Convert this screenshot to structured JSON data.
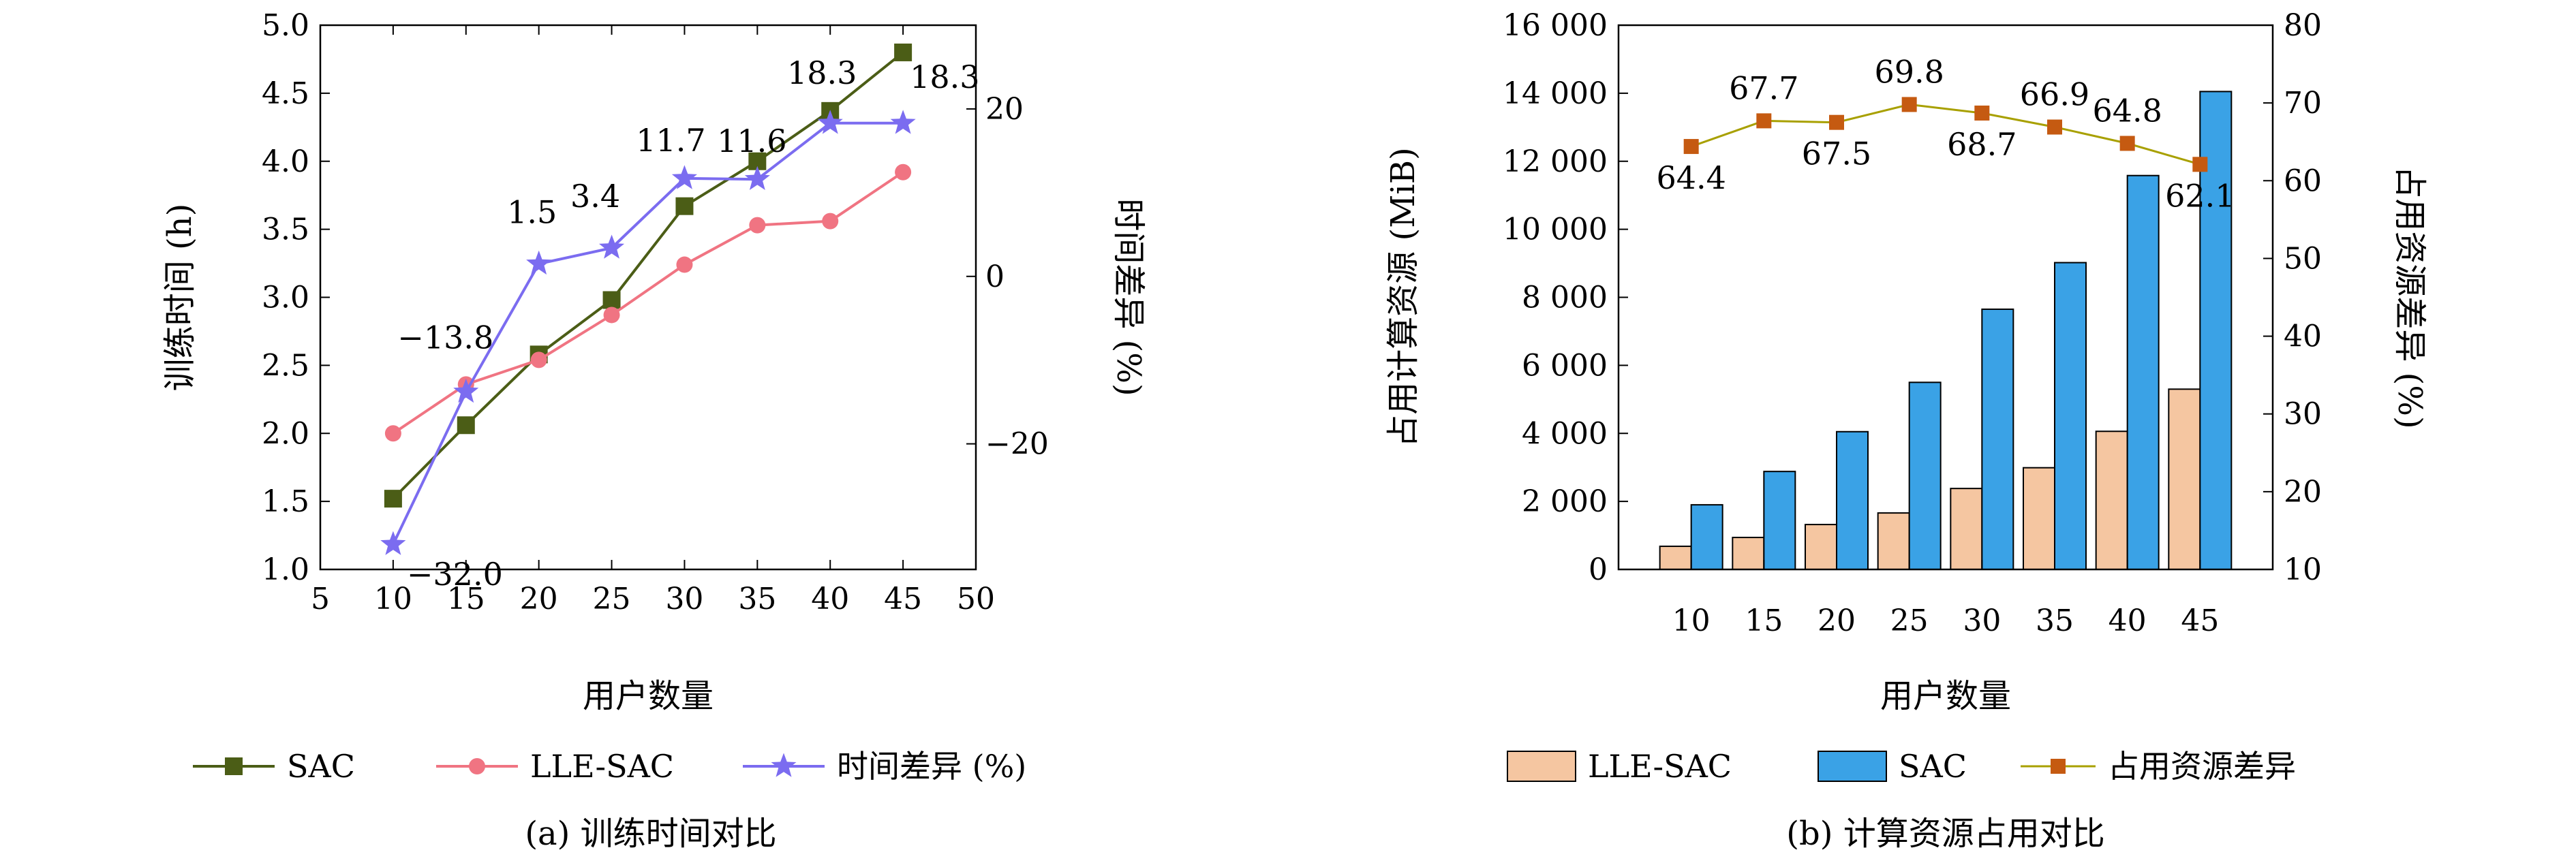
{
  "chart_data": [
    {
      "type": "line",
      "caption": "(a) 训练时间对比",
      "xlabel": "用户数量",
      "ylabel_left": "训练时间 (h)",
      "ylabel_right": "时间差异 (%)",
      "xlim": [
        5,
        50
      ],
      "xticks": [
        "5",
        "10",
        "15",
        "20",
        "25",
        "30",
        "35",
        "40",
        "45",
        "50"
      ],
      "ylim_left": [
        1.0,
        5.0
      ],
      "yticks_left": [
        "1.0",
        "1.5",
        "2.0",
        "2.5",
        "3.0",
        "3.5",
        "4.0",
        "4.5",
        "5.0"
      ],
      "ylim_right": [
        -35,
        30
      ],
      "yticks_right": [
        "−20",
        "0",
        "20"
      ],
      "x": [
        10,
        15,
        20,
        25,
        30,
        35,
        40,
        45
      ],
      "series": [
        {
          "name": "SAC",
          "axis": "left",
          "color": "#4b5d16",
          "marker": "square",
          "values": [
            1.52,
            2.06,
            2.58,
            2.98,
            3.67,
            4.0,
            4.37,
            4.8
          ]
        },
        {
          "name": "LLE-SAC",
          "axis": "left",
          "color": "#f07482",
          "marker": "circle",
          "values": [
            2.0,
            2.36,
            2.54,
            2.87,
            3.24,
            3.53,
            3.56,
            3.92
          ]
        },
        {
          "name": "时间差异 (%)",
          "axis": "right",
          "color": "#7b6cf0",
          "marker": "star",
          "values": [
            -32.0,
            -13.8,
            1.5,
            3.4,
            11.7,
            11.6,
            18.3,
            18.3
          ],
          "labels": [
            "−32.0",
            "−13.8",
            "1.5",
            "3.4",
            "11.7",
            "11.6",
            "18.3",
            "18.3"
          ]
        }
      ],
      "legend_position": "bottom"
    },
    {
      "type": "bar",
      "caption": "(b) 计算资源占用对比",
      "xlabel": "用户数量",
      "ylabel_left": "占用计算资源 (MiB)",
      "ylabel_right": "占用资源差异 (%)",
      "categories": [
        "10",
        "15",
        "20",
        "25",
        "30",
        "35",
        "40",
        "45"
      ],
      "ylim_left": [
        0,
        16000
      ],
      "yticks_left": [
        "0",
        "2 000",
        "4 000",
        "6 000",
        "8 000",
        "10 000",
        "12 000",
        "14 000",
        "16 000"
      ],
      "ylim_right": [
        10,
        80
      ],
      "yticks_right": [
        "10",
        "20",
        "30",
        "40",
        "50",
        "60",
        "70",
        "80"
      ],
      "series": [
        {
          "name": "LLE-SAC",
          "type": "bar",
          "axis": "left",
          "color": "#f5c6a1",
          "values": [
            680,
            940,
            1320,
            1660,
            2380,
            2990,
            4060,
            5300
          ]
        },
        {
          "name": "SAC",
          "type": "bar",
          "axis": "left",
          "color": "#3aa2e6",
          "values": [
            1900,
            2880,
            4050,
            5500,
            7650,
            9020,
            11580,
            14050
          ]
        },
        {
          "name": "占用资源差异",
          "type": "line",
          "axis": "right",
          "color": "#c55a11",
          "line_color": "#a8a000",
          "values": [
            64.4,
            67.7,
            67.5,
            69.8,
            68.7,
            66.9,
            64.8,
            62.1
          ],
          "labels": [
            "64.4",
            "67.7",
            "67.5",
            "69.8",
            "68.7",
            "66.9",
            "64.8",
            "62.1"
          ]
        }
      ],
      "legend_position": "bottom"
    }
  ]
}
